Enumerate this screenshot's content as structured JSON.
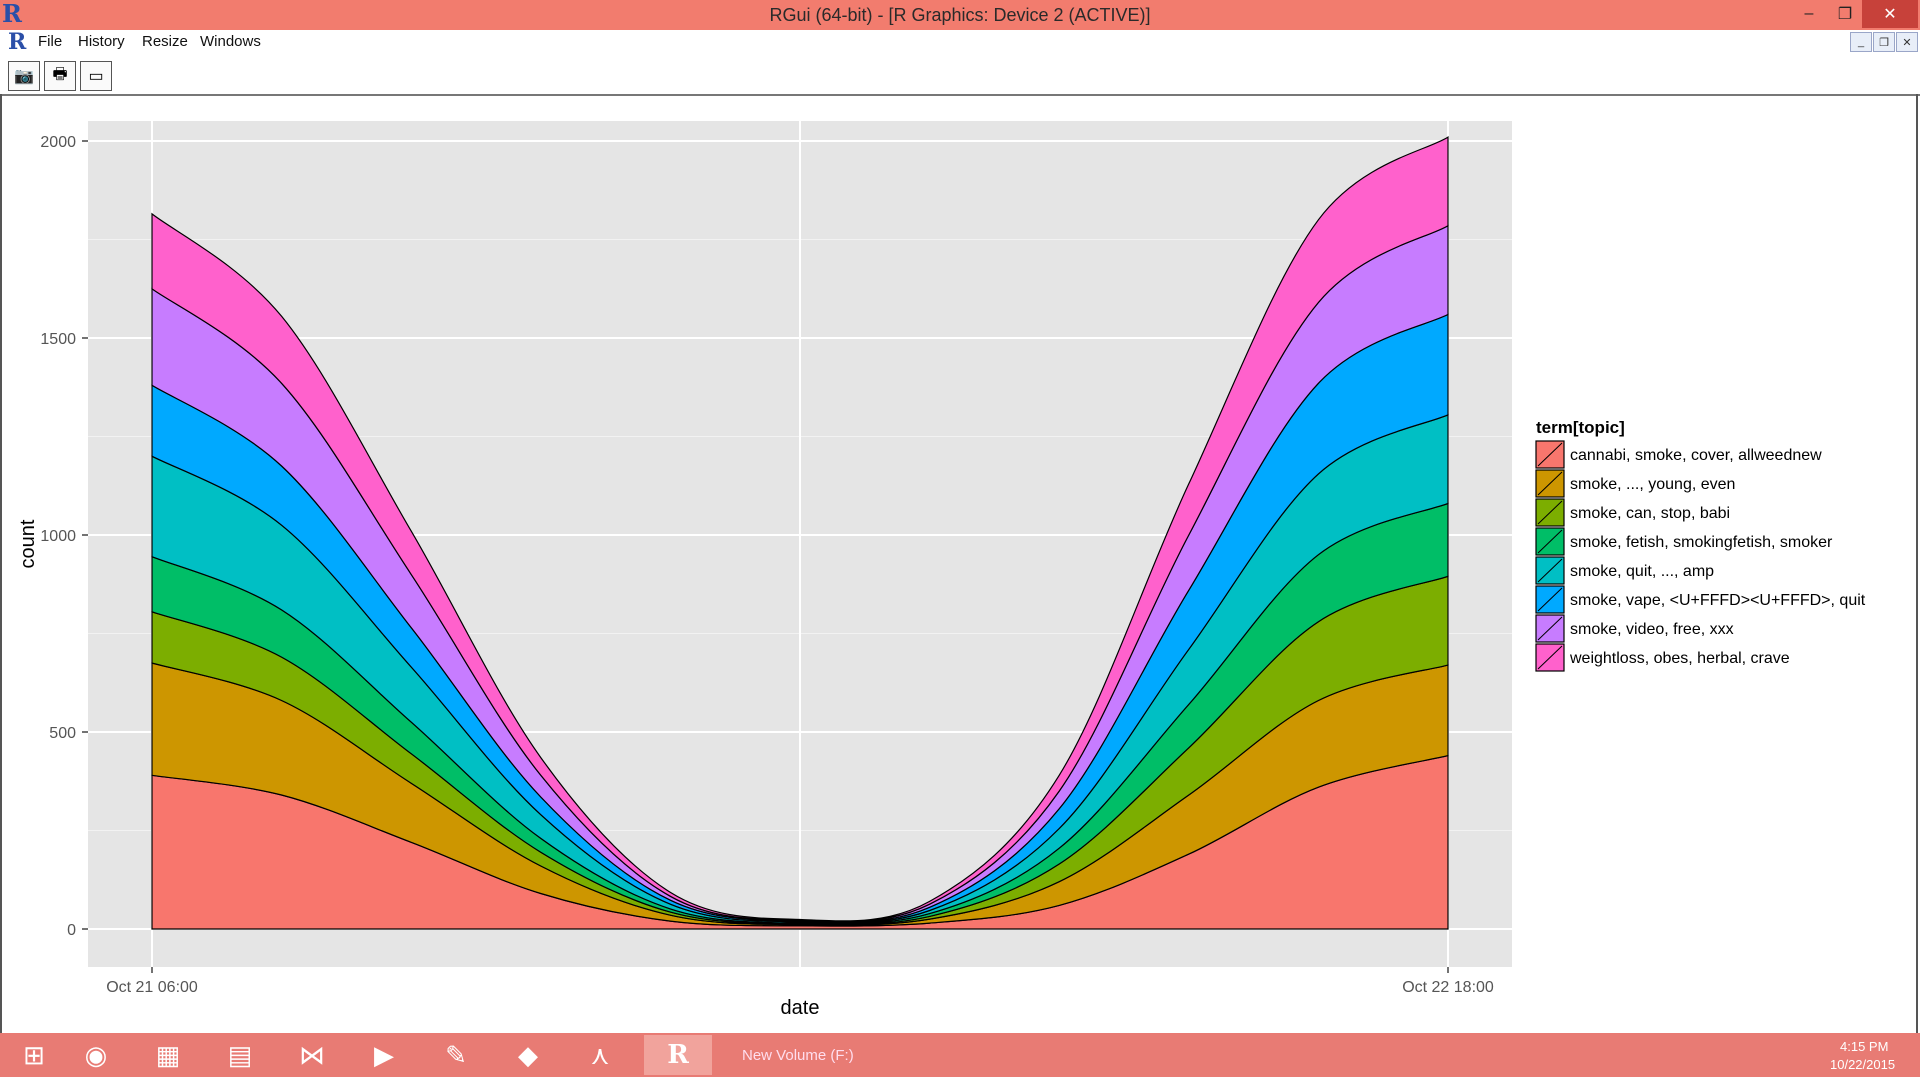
{
  "window": {
    "title": "RGui (64-bit) - [R Graphics: Device 2 (ACTIVE)]",
    "minimize_glyph": "–",
    "maximize_glyph": "❐",
    "close_glyph": "✕"
  },
  "menu": {
    "items": [
      "File",
      "History",
      "Resize",
      "Windows"
    ]
  },
  "mdi_buttons": [
    "_",
    "❐",
    "✕"
  ],
  "toolbar": {
    "buttons": [
      {
        "name": "copy-metafile-button",
        "icon": "camera-icon",
        "glyph": "📷"
      },
      {
        "name": "print-button",
        "icon": "printer-icon",
        "glyph": "🖶"
      },
      {
        "name": "console-button",
        "icon": "window-icon",
        "glyph": "▭"
      }
    ]
  },
  "chart_data": {
    "type": "area",
    "stacked": true,
    "xlabel": "date",
    "ylabel": "count",
    "x_tick_labels": [
      "Oct 21 06:00",
      "Oct 22 18:00"
    ],
    "ylim": [
      0,
      2000
    ],
    "y_ticks": [
      0,
      500,
      1000,
      1500,
      2000
    ],
    "grid": true,
    "legend_title": "term[topic]",
    "legend_position": "right",
    "x": [
      0,
      0.1,
      0.2,
      0.3,
      0.4,
      0.5,
      0.6,
      0.7,
      0.8,
      0.9,
      1
    ],
    "series": [
      {
        "name": "cannabi, smoke, cover, allweednew",
        "color": "#f8766d",
        "values": [
          390,
          340,
          220,
          90,
          20,
          8,
          15,
          60,
          190,
          360,
          440
        ]
      },
      {
        "name": "smoke, ..., young, even",
        "color": "#cd9600",
        "values": [
          285,
          240,
          150,
          70,
          15,
          3,
          10,
          60,
          150,
          220,
          230
        ]
      },
      {
        "name": "smoke, can, stop, babi",
        "color": "#7cae00",
        "values": [
          130,
          110,
          75,
          35,
          8,
          2,
          7,
          45,
          120,
          200,
          225
        ]
      },
      {
        "name": "smoke, fetish, smokingfetish, smoker",
        "color": "#00be67",
        "values": [
          140,
          120,
          80,
          35,
          8,
          2,
          7,
          40,
          110,
          170,
          185
        ]
      },
      {
        "name": "smoke, quit, ..., amp",
        "color": "#00bfc4",
        "values": [
          255,
          215,
          140,
          60,
          12,
          3,
          8,
          50,
          140,
          205,
          225
        ]
      },
      {
        "name": "smoke, vape, <U+FFFD><U+FFFD>, quit",
        "color": "#00a9ff",
        "values": [
          180,
          150,
          100,
          45,
          10,
          2,
          8,
          50,
          150,
          230,
          255
        ]
      },
      {
        "name": "smoke, video, free, xxx",
        "color": "#c77cff",
        "values": [
          245,
          210,
          135,
          55,
          10,
          2,
          8,
          45,
          140,
          205,
          225
        ]
      },
      {
        "name": "weightloss, obes, herbal, crave",
        "color": "#ff61cc",
        "values": [
          190,
          170,
          110,
          45,
          10,
          2,
          7,
          40,
          130,
          210,
          225
        ]
      }
    ]
  },
  "taskbar": {
    "icons": [
      {
        "name": "windows-start-icon",
        "glyph": "⊞"
      },
      {
        "name": "chrome-icon",
        "glyph": "◉"
      },
      {
        "name": "store-icon",
        "glyph": "▦"
      },
      {
        "name": "file-explorer-icon",
        "glyph": "▤"
      },
      {
        "name": "visual-studio-icon",
        "glyph": "⋈"
      },
      {
        "name": "media-player-icon",
        "glyph": "▶"
      },
      {
        "name": "image-viewer-icon",
        "glyph": "✎"
      },
      {
        "name": "cube-app-icon",
        "glyph": "◆"
      },
      {
        "name": "acrobat-icon",
        "glyph": "⋏"
      },
      {
        "name": "r-app-icon",
        "glyph": "R"
      }
    ],
    "drive_label": "New Volume (F:)",
    "clock_time": "4:15 PM",
    "clock_date": "10/22/2015"
  }
}
